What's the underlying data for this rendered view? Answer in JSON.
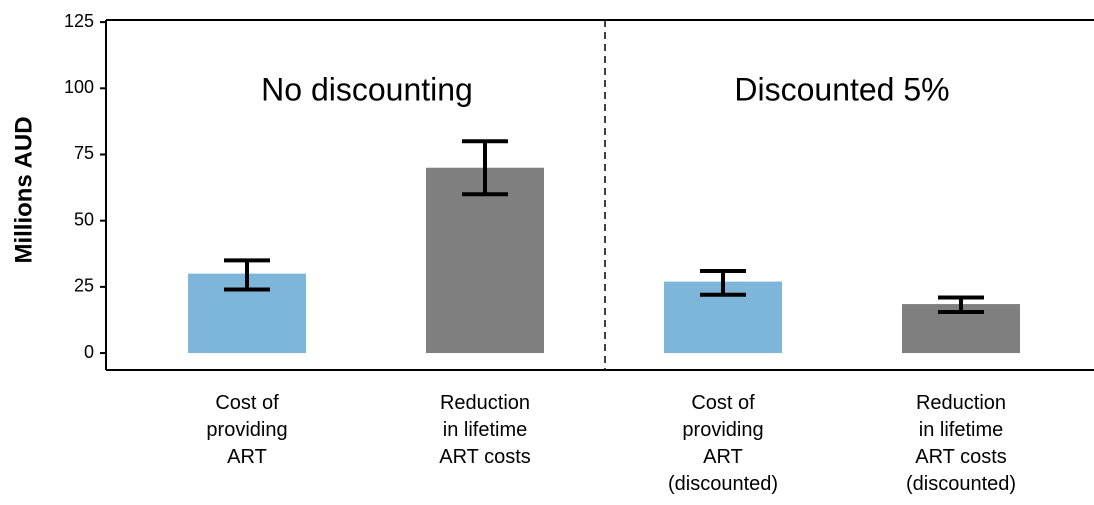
{
  "chart_data": {
    "type": "bar",
    "y_label": "Millions AUD",
    "annotations": [
      "No discounting",
      "Discounted 5%"
    ],
    "categories": [
      [
        "Cost of",
        "providing",
        "ART"
      ],
      [
        "Reduction",
        "in lifetime",
        "ART costs"
      ],
      [
        "Cost of",
        "providing",
        "ART",
        "(discounted)"
      ],
      [
        "Reduction",
        "in lifetime",
        "ART costs",
        "(discounted)"
      ]
    ],
    "values": [
      30,
      70,
      27,
      18.5
    ],
    "lower": [
      24,
      60,
      22,
      15.5
    ],
    "upper": [
      35,
      80,
      31,
      21
    ],
    "colors": [
      "#7eb6d9",
      "#7f7f7f",
      "#7eb6d9",
      "#7f7f7f"
    ],
    "ylim": [
      -6.4,
      125.8
    ],
    "yticks": [
      0,
      25,
      50,
      75,
      100,
      125
    ],
    "grid": false
  }
}
